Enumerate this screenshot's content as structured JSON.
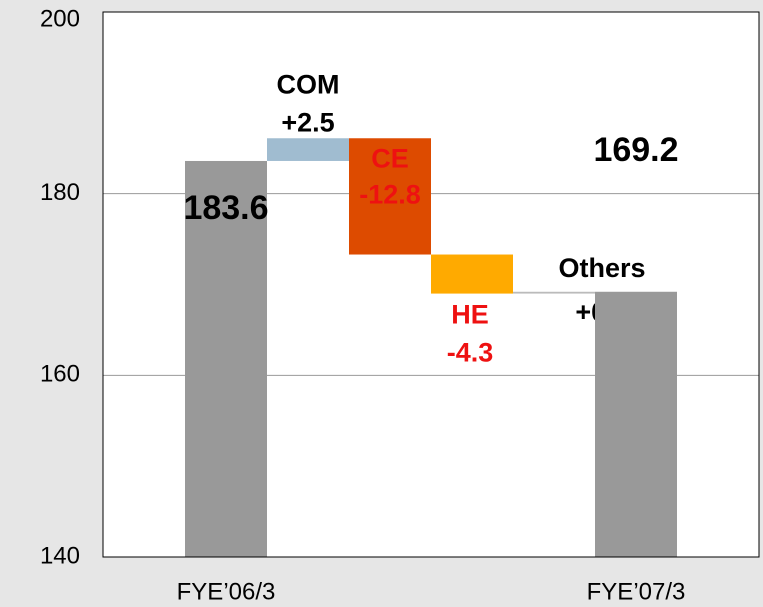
{
  "chart_data": {
    "type": "waterfall",
    "categories": [
      "FYE’06/3",
      null,
      null,
      null,
      null,
      "FYE’07/3"
    ],
    "step_labels": [
      null,
      "COM",
      "CE",
      "HE",
      "Others",
      null
    ],
    "values": [
      183.6,
      2.5,
      -12.8,
      -4.3,
      0.2,
      169.2
    ],
    "value_labels": [
      "183.6",
      "+2.5",
      "-12.8",
      "-4.3",
      "+0.2",
      "169.2"
    ],
    "colors": [
      "#999999",
      "#a0bcd0",
      "#dd4b00",
      "#ffaa00",
      "#bbbbbb",
      "#999999"
    ],
    "label_colors": [
      "#000000",
      "#000000",
      "#ee1111",
      "#ee1111",
      "#000000",
      "#000000"
    ],
    "ylim": [
      140,
      200
    ],
    "yticks": [
      140,
      160,
      180,
      200
    ],
    "grid": true
  }
}
